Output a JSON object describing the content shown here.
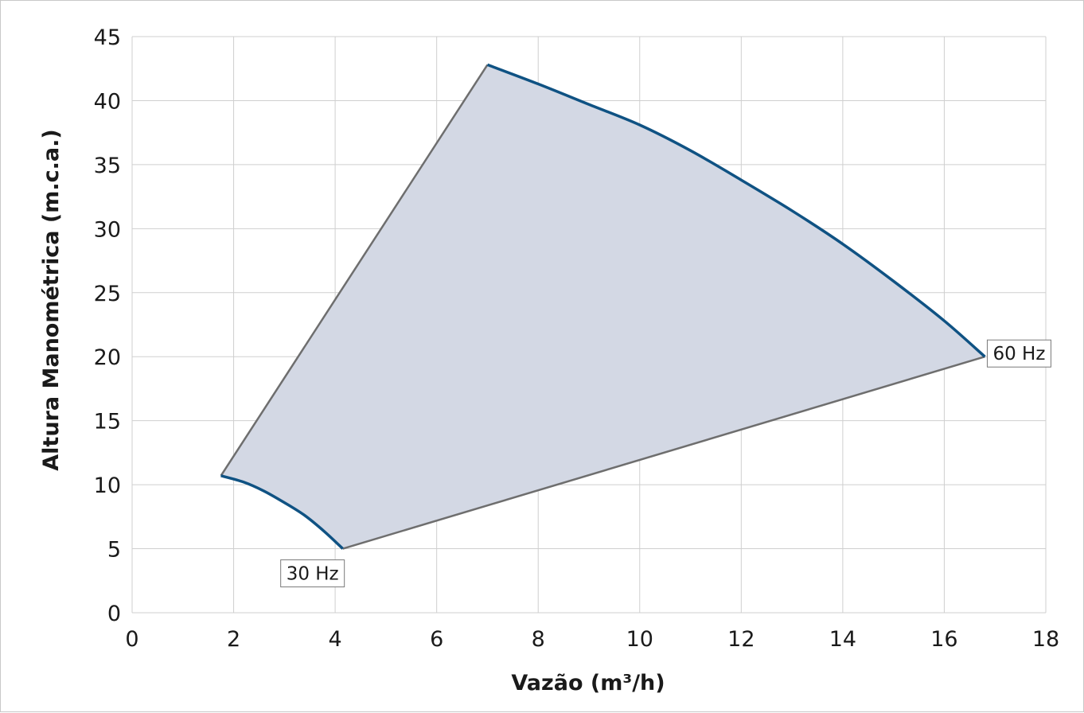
{
  "chart_data": {
    "type": "area",
    "xlabel": "Vazão (m³/h)",
    "ylabel": "Altura Manométrica (m.c.a.)",
    "xlim": [
      0,
      18
    ],
    "ylim": [
      0,
      45
    ],
    "xticks": [
      0,
      2,
      4,
      6,
      8,
      10,
      12,
      14,
      16,
      18
    ],
    "yticks": [
      0,
      5,
      10,
      15,
      20,
      25,
      30,
      35,
      40,
      45
    ],
    "grid": true,
    "colors": {
      "fill": "#d3d8e4",
      "curve": "#0f5283",
      "edge": "#6e6e6e",
      "grid": "#cfcfcf"
    },
    "curve_60hz": [
      [
        7.0,
        42.8
      ],
      [
        8.0,
        41.3
      ],
      [
        9.0,
        39.7
      ],
      [
        10.0,
        38.1
      ],
      [
        11.0,
        36.1
      ],
      [
        12.0,
        33.8
      ],
      [
        13.0,
        31.4
      ],
      [
        14.0,
        28.8
      ],
      [
        15.0,
        25.9
      ],
      [
        16.0,
        22.8
      ],
      [
        16.8,
        20.0
      ]
    ],
    "curve_30hz": [
      [
        1.75,
        10.7
      ],
      [
        2.2,
        10.2
      ],
      [
        2.6,
        9.5
      ],
      [
        3.0,
        8.6
      ],
      [
        3.4,
        7.6
      ],
      [
        3.8,
        6.3
      ],
      [
        4.15,
        5.0
      ]
    ],
    "boundary_left": [
      [
        1.75,
        10.7
      ],
      [
        7.0,
        42.8
      ]
    ],
    "boundary_bottom": [
      [
        4.15,
        5.0
      ],
      [
        16.8,
        20.0
      ]
    ],
    "annotations": [
      {
        "text": "60 Hz",
        "x": 16.8,
        "y": 20.0,
        "anchor": "right"
      },
      {
        "text": "30 Hz",
        "x": 4.15,
        "y": 5.0,
        "anchor": "below-left"
      }
    ]
  }
}
